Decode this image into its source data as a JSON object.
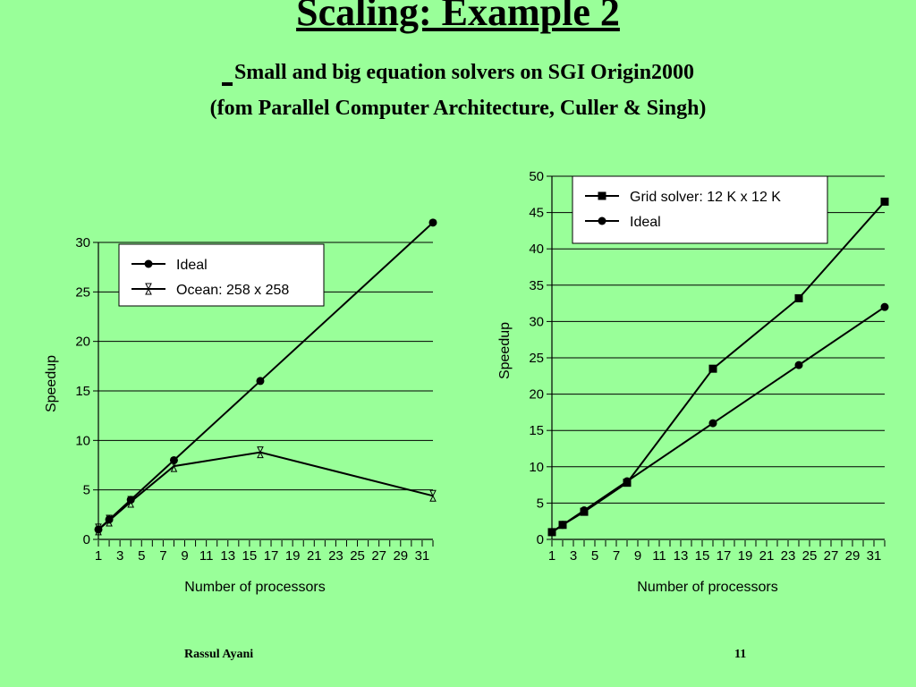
{
  "slide": {
    "title": "Scaling: Example 2",
    "subtitle_line1": "Small and big equation solvers on SGI Origin2000",
    "subtitle_line2": "(fom Parallel Computer Architecture, Culler & Singh)",
    "footer_author": "Rassul Ayani",
    "footer_page": "11"
  },
  "chart_data": [
    {
      "type": "line",
      "xlabel": "Number of processors",
      "ylabel": "Speedup",
      "xlim": [
        1,
        32
      ],
      "ylim": [
        0,
        30
      ],
      "x_tick_labels": [
        "1",
        "3",
        "5",
        "7",
        "9",
        "11",
        "13",
        "15",
        "17",
        "19",
        "21",
        "23",
        "25",
        "27",
        "29",
        "31"
      ],
      "y_tick_labels": [
        "0",
        "5",
        "10",
        "15",
        "20",
        "25",
        "30"
      ],
      "grid": "horizontal",
      "legend": "top-left",
      "series": [
        {
          "name": "Ideal",
          "marker": "circle",
          "x": [
            1,
            2,
            4,
            8,
            16,
            32
          ],
          "values": [
            1,
            2,
            4,
            8,
            16,
            32
          ]
        },
        {
          "name": "Ocean: 258 x 258",
          "marker": "hourglass",
          "x": [
            1,
            2,
            4,
            8,
            16,
            32
          ],
          "values": [
            1,
            1.9,
            3.8,
            7.4,
            8.8,
            4.4
          ]
        }
      ]
    },
    {
      "type": "line",
      "xlabel": "Number of processors",
      "ylabel": "Speedup",
      "xlim": [
        1,
        32
      ],
      "ylim": [
        0,
        50
      ],
      "x_tick_labels": [
        "1",
        "3",
        "5",
        "7",
        "9",
        "11",
        "13",
        "15",
        "17",
        "19",
        "21",
        "23",
        "25",
        "27",
        "29",
        "31"
      ],
      "y_tick_labels": [
        "0",
        "5",
        "10",
        "15",
        "20",
        "25",
        "30",
        "35",
        "40",
        "45",
        "50"
      ],
      "grid": "horizontal",
      "legend": "top-left",
      "series": [
        {
          "name": "Grid solver: 12 K x 12 K",
          "marker": "square",
          "x": [
            1,
            2,
            4,
            8,
            16,
            24,
            32
          ],
          "values": [
            1,
            2,
            3.8,
            7.8,
            23.5,
            33.2,
            46.5
          ]
        },
        {
          "name": "Ideal",
          "marker": "circle",
          "x": [
            1,
            2,
            4,
            8,
            16,
            24,
            32
          ],
          "values": [
            1,
            2,
            4,
            8,
            16,
            24,
            32
          ]
        }
      ]
    }
  ]
}
